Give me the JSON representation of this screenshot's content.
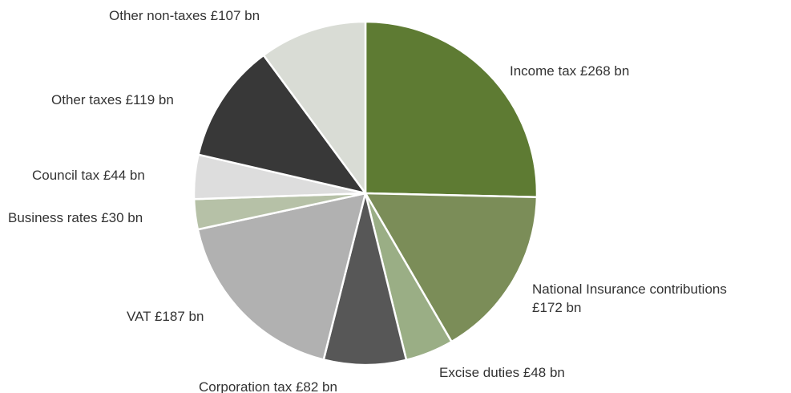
{
  "chart_data": {
    "type": "pie",
    "title": "",
    "categories": [
      "Income tax",
      "National Insurance contributions",
      "Excise duties",
      "Corporation tax",
      "VAT",
      "Business rates",
      "Council tax",
      "Other taxes",
      "Other non-taxes"
    ],
    "values": [
      268,
      172,
      48,
      82,
      187,
      30,
      44,
      119,
      107
    ],
    "unit": "£ bn",
    "start_angle": "12 o'clock",
    "direction": "clockwise",
    "legend": "none",
    "labels": [
      {
        "lines": [
          "Income tax £268 bn"
        ]
      },
      {
        "lines": [
          "National Insurance contributions",
          "£172 bn"
        ]
      },
      {
        "lines": [
          "Excise duties £48 bn"
        ]
      },
      {
        "lines": [
          "Corporation tax £82 bn"
        ]
      },
      {
        "lines": [
          "VAT £187 bn"
        ]
      },
      {
        "lines": [
          "Business rates £30 bn"
        ]
      },
      {
        "lines": [
          "Council tax £44 bn"
        ]
      },
      {
        "lines": [
          "Other taxes £119 bn"
        ]
      },
      {
        "lines": [
          "Other non-taxes £107 bn"
        ]
      }
    ],
    "colors": [
      "#5e7b33",
      "#7b8d58",
      "#9aae85",
      "#575757",
      "#b1b1b1",
      "#b6c1a7",
      "#dddddd",
      "#383838",
      "#d9dcd5"
    ]
  }
}
